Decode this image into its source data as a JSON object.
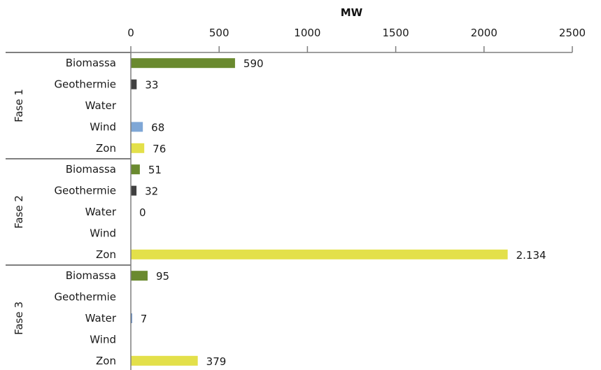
{
  "chart_data": {
    "type": "bar",
    "orientation": "horizontal",
    "xlabel": "MW",
    "xlim": [
      0,
      2500
    ],
    "x_ticks": [
      {
        "value": 0,
        "label": "0"
      },
      {
        "value": 500,
        "label": "500"
      },
      {
        "value": 1000,
        "label": "1000"
      },
      {
        "value": 1500,
        "label": "1500"
      },
      {
        "value": 2000,
        "label": "2000"
      },
      {
        "value": 2500,
        "label": "2500"
      }
    ],
    "axis_position": "top",
    "grid": false,
    "colors": {
      "Biomassa": "#6a8a2f",
      "Geothermie": "#404040",
      "Water": "#4f7fbf",
      "Wind": "#7fa7d6",
      "Zon": "#e3e04a"
    },
    "groups": [
      {
        "name": "Fase 1",
        "rows": [
          {
            "category": "Biomassa",
            "value": 590,
            "label": "590"
          },
          {
            "category": "Geothermie",
            "value": 33,
            "label": "33"
          },
          {
            "category": "Water",
            "value": null,
            "label": ""
          },
          {
            "category": "Wind",
            "value": 68,
            "label": "68"
          },
          {
            "category": "Zon",
            "value": 76,
            "label": "76"
          }
        ]
      },
      {
        "name": "Fase 2",
        "rows": [
          {
            "category": "Biomassa",
            "value": 51,
            "label": "51"
          },
          {
            "category": "Geothermie",
            "value": 32,
            "label": "32"
          },
          {
            "category": "Water",
            "value": 0,
            "label": "0"
          },
          {
            "category": "Wind",
            "value": null,
            "label": ""
          },
          {
            "category": "Zon",
            "value": 2134,
            "label": "2.134"
          }
        ]
      },
      {
        "name": "Fase 3",
        "rows": [
          {
            "category": "Biomassa",
            "value": 95,
            "label": "95"
          },
          {
            "category": "Geothermie",
            "value": null,
            "label": ""
          },
          {
            "category": "Water",
            "value": 7,
            "label": "7"
          },
          {
            "category": "Wind",
            "value": null,
            "label": ""
          },
          {
            "category": "Zon",
            "value": 379,
            "label": "379"
          }
        ]
      }
    ]
  }
}
